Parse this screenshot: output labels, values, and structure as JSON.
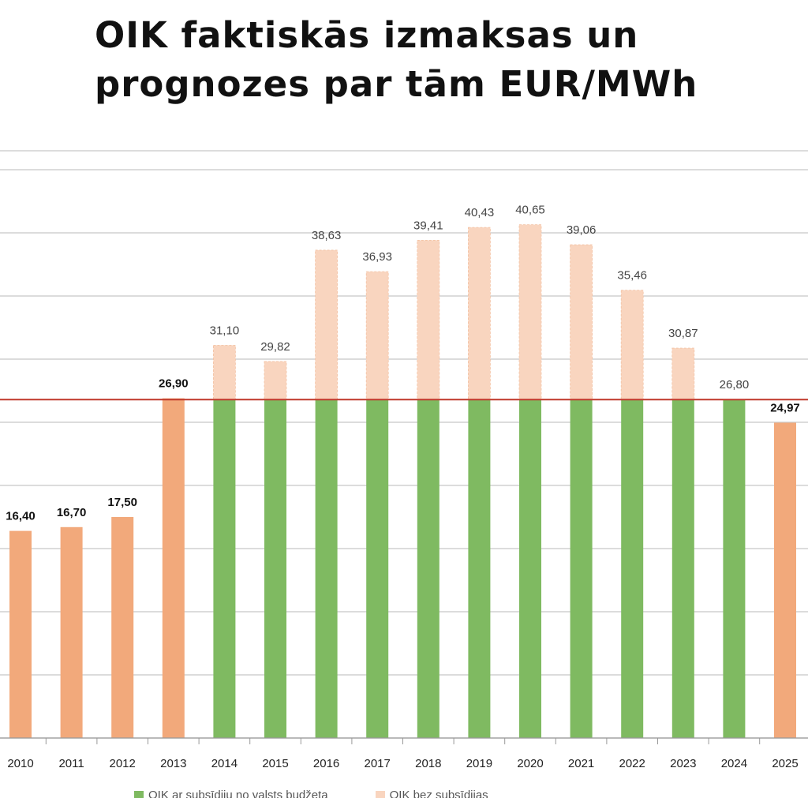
{
  "title": {
    "line1": "OIK faktiskās izmaksas un",
    "line2": "prognozes par tām EUR/MWh"
  },
  "colors": {
    "actual": "#f2a97b",
    "subsidized": "#7fba61",
    "without_subsidy": "#f9d5bf",
    "reference_line": "#c0392b",
    "grid": "#c8c8c8"
  },
  "legend": {
    "subsidized_label": "OIK ar subsīdiju no valsts budžeta",
    "without_subsidy_label": "OIK bez subsīdijas"
  },
  "chart_data": {
    "type": "bar",
    "title": "OIK faktiskās izmaksas un prognozes par tām EUR/MWh",
    "categories": [
      "2010",
      "2011",
      "2012",
      "2013",
      "2014",
      "2015",
      "2016",
      "2017",
      "2018",
      "2019",
      "2020",
      "2021",
      "2022",
      "2023",
      "2024",
      "2025"
    ],
    "reference_line": 26.8,
    "series": [
      {
        "name": "OIK ar subsīdiju no valsts budžeta",
        "values": [
          null,
          null,
          null,
          null,
          26.8,
          26.8,
          26.8,
          26.8,
          26.8,
          26.8,
          26.8,
          26.8,
          26.8,
          26.8,
          26.8,
          null
        ]
      },
      {
        "name": "OIK bez subsīdijas",
        "values": [
          null,
          null,
          null,
          null,
          31.1,
          29.82,
          38.63,
          36.93,
          39.41,
          40.43,
          40.65,
          39.06,
          35.46,
          30.87,
          null,
          null
        ]
      },
      {
        "values": [
          16.4,
          16.7,
          17.5,
          26.9,
          null,
          null,
          null,
          null,
          null,
          null,
          null,
          null,
          null,
          null,
          null,
          24.97
        ]
      }
    ],
    "data_labels": [
      "16,40",
      "16,70",
      "17,50",
      "26,90",
      "31,10",
      "29,82",
      "38,63",
      "36,93",
      "39,41",
      "40,43",
      "40,65",
      "39,06",
      "35,46",
      "30,87",
      "26,80",
      "24,97"
    ],
    "bold_labels": [
      true,
      true,
      true,
      true,
      false,
      false,
      false,
      false,
      false,
      false,
      false,
      false,
      false,
      false,
      false,
      true
    ],
    "ylim": [
      0,
      46
    ],
    "grid": true
  }
}
